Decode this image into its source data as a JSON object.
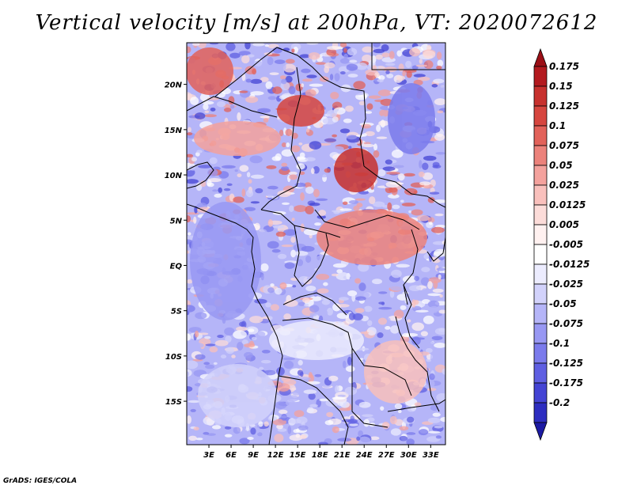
{
  "title": "Vertical velocity [m/s] at 200hPa, VT: 2020072612",
  "credit": "GrADS: IGES/COLA",
  "lat_ticks": [
    {
      "label": "20N",
      "value": 20
    },
    {
      "label": "15N",
      "value": 15
    },
    {
      "label": "10N",
      "value": 10
    },
    {
      "label": "5N",
      "value": 5
    },
    {
      "label": "EQ",
      "value": 0
    },
    {
      "label": "5S",
      "value": -5
    },
    {
      "label": "10S",
      "value": -10
    },
    {
      "label": "15S",
      "value": -15
    }
  ],
  "lon_ticks": [
    {
      "label": "3E",
      "value": 3
    },
    {
      "label": "6E",
      "value": 6
    },
    {
      "label": "9E",
      "value": 9
    },
    {
      "label": "12E",
      "value": 12
    },
    {
      "label": "15E",
      "value": 15
    },
    {
      "label": "18E",
      "value": 18
    },
    {
      "label": "21E",
      "value": 21
    },
    {
      "label": "24E",
      "value": 24
    },
    {
      "label": "27E",
      "value": 27
    },
    {
      "label": "30E",
      "value": 30
    },
    {
      "label": "33E",
      "value": 33
    }
  ],
  "colorbar": [
    {
      "label": "",
      "color": "#9b0f16"
    },
    {
      "label": "0.175",
      "color": "#b31a1f"
    },
    {
      "label": "0.15",
      "color": "#c7312e"
    },
    {
      "label": "0.125",
      "color": "#d6463f"
    },
    {
      "label": "0.1",
      "color": "#e2625a"
    },
    {
      "label": "0.075",
      "color": "#ec827b"
    },
    {
      "label": "0.05",
      "color": "#f4a29d"
    },
    {
      "label": "0.025",
      "color": "#f9c0bc"
    },
    {
      "label": "0.0125",
      "color": "#fcdcd9"
    },
    {
      "label": "0.005",
      "color": "#fff1f0"
    },
    {
      "label": "-0.005",
      "color": "#ffffff"
    },
    {
      "label": "-0.0125",
      "color": "#ececfe"
    },
    {
      "label": "-0.025",
      "color": "#d2d2fb"
    },
    {
      "label": "-0.05",
      "color": "#b5b5f8"
    },
    {
      "label": "-0.075",
      "color": "#9898f3"
    },
    {
      "label": "-0.1",
      "color": "#7b7bec"
    },
    {
      "label": "-0.125",
      "color": "#5f5fe2"
    },
    {
      "label": "-0.175",
      "color": "#4444d4"
    },
    {
      "label": "-0.2",
      "color": "#2d2dc0"
    },
    {
      "label": "",
      "color": "#1c1aa3"
    }
  ]
}
